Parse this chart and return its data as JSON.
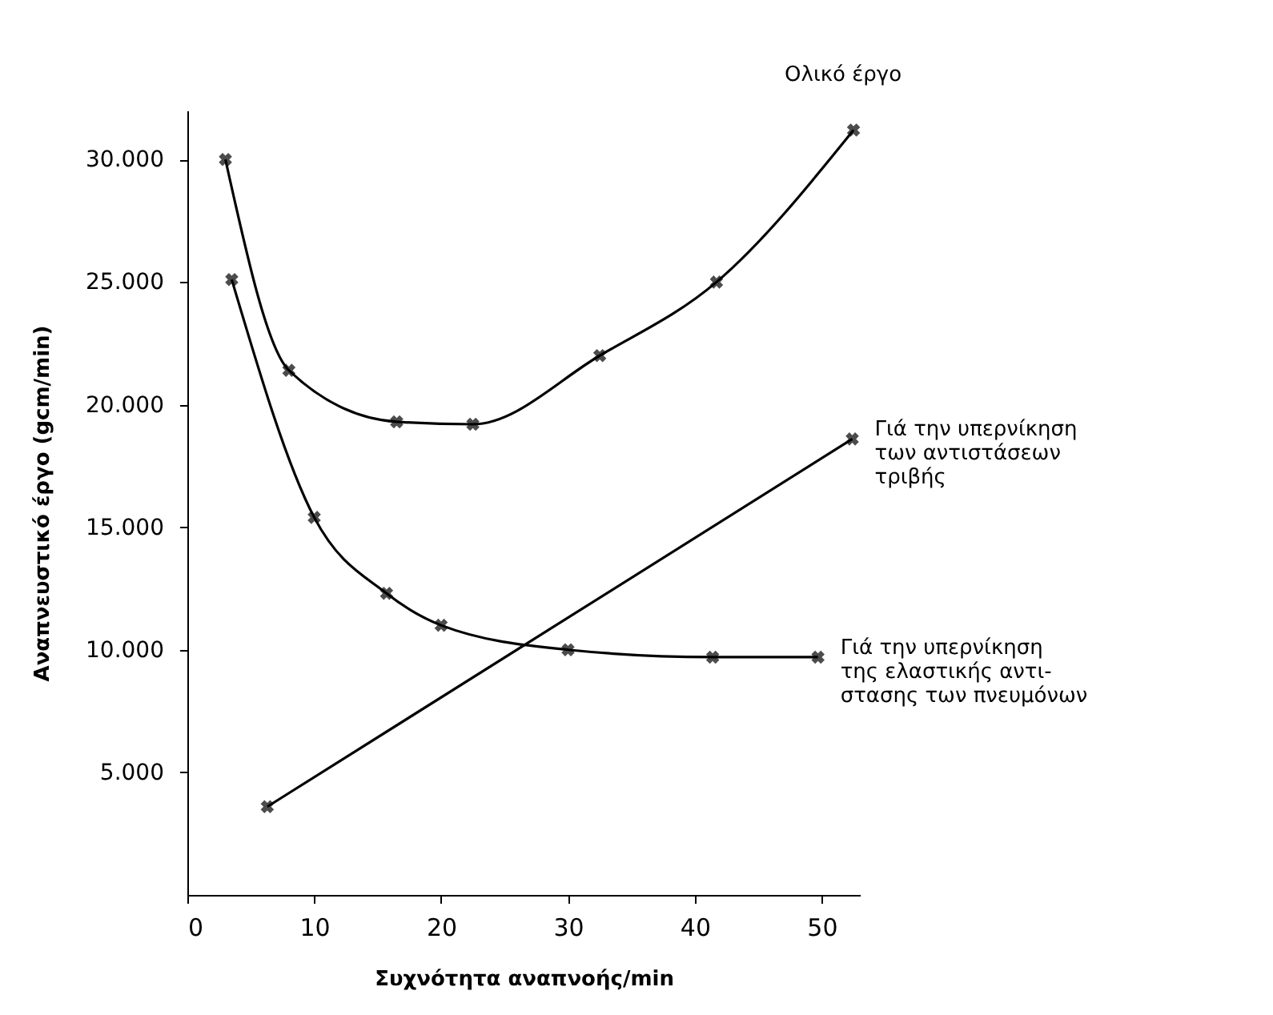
{
  "chart_data": {
    "type": "line",
    "xlabel": "Συχνότητα αναπνοής/min",
    "ylabel": "Αναπνευστικό έργο (gcm/min)",
    "xlim": [
      0,
      53
    ],
    "xticks": [
      0,
      10,
      20,
      30,
      40,
      50
    ],
    "ylim": [
      0,
      32000
    ],
    "yticks": [
      {
        "value": 5000,
        "label": "5.000"
      },
      {
        "value": 10000,
        "label": "10.000"
      },
      {
        "value": 15000,
        "label": "15.000"
      },
      {
        "value": 20000,
        "label": "20.000"
      },
      {
        "value": 25000,
        "label": "25.000"
      },
      {
        "value": 30000,
        "label": "30.000"
      }
    ],
    "grid": false,
    "marker": "cross",
    "line_style": "solid",
    "series": [
      {
        "name": "Ολικό έργο",
        "color": "#000000",
        "x": [
          3,
          8,
          16.5,
          22.5,
          32.5,
          41.7,
          52.5
        ],
        "values": [
          30000,
          21400,
          19300,
          19200,
          22000,
          25000,
          31200
        ]
      },
      {
        "name": "Γιά την υπερνίκηση\nτων αντιστάσεων\nτριβής",
        "color": "#000000",
        "x": [
          6.3,
          52.4
        ],
        "values": [
          3600,
          18600
        ]
      },
      {
        "name": "Γιά την υπερνίκηση\nτης ελαστικής αντι-\nστασης των πνευμόνων",
        "color": "#000000",
        "x": [
          3.5,
          10,
          15.7,
          20,
          30,
          41.4,
          49.7
        ],
        "values": [
          25100,
          15400,
          12300,
          11000,
          10000,
          9700,
          9700
        ]
      }
    ]
  }
}
